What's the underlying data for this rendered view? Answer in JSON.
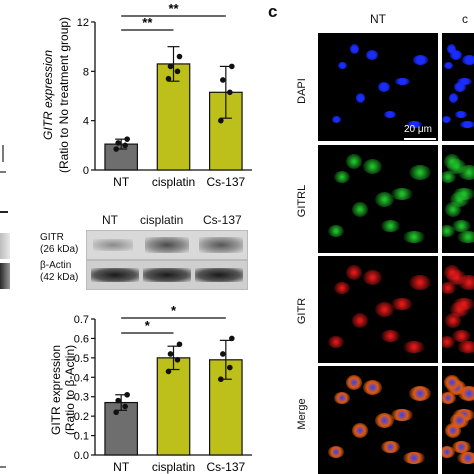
{
  "panel_c_letter": "c",
  "chart_top": {
    "type": "bar",
    "ylabel_line1": "GITR expression",
    "ylabel_line2": "(Ratio to No treatment group)",
    "categories": [
      "NT",
      "cisplatin",
      "Cs-137"
    ],
    "values": [
      2.1,
      8.6,
      6.3
    ],
    "errors": [
      0.4,
      1.4,
      2.1
    ],
    "points": [
      [
        1.7,
        2.0,
        2.2,
        2.5
      ],
      [
        7.4,
        8.0,
        8.4,
        9.2
      ],
      [
        4.0,
        6.3,
        7.3,
        8.4
      ]
    ],
    "ylim": [
      0,
      12
    ],
    "yticks": [
      "0",
      "4",
      "8",
      "12"
    ],
    "colors": [
      "#6e6e6e",
      "#bdbf1a",
      "#bdbf1a"
    ],
    "sig": [
      {
        "label": "**",
        "from": 0,
        "to": 1
      },
      {
        "label": "**",
        "from": 0,
        "to": 2
      }
    ]
  },
  "blot": {
    "lanes": [
      "NT",
      "cisplatin",
      "Cs-137"
    ],
    "rows": [
      {
        "name": "GITR",
        "size": "(26 kDa)"
      },
      {
        "name": "β-Actin",
        "size": "(42 kDa)"
      }
    ]
  },
  "chart_bottom": {
    "type": "bar",
    "ylabel_line1": "GITR expression",
    "ylabel_line2": "(Ratio to β-Actin)",
    "categories": [
      "NT",
      "cisplatin",
      "Cs-137"
    ],
    "values": [
      0.27,
      0.5,
      0.49
    ],
    "errors": [
      0.04,
      0.06,
      0.1
    ],
    "points": [
      [
        0.22,
        0.25,
        0.28,
        0.31
      ],
      [
        0.43,
        0.49,
        0.52,
        0.57
      ],
      [
        0.39,
        0.45,
        0.52,
        0.6
      ]
    ],
    "ylim": [
      0,
      0.7
    ],
    "yticks": [
      "0.0",
      "0.1",
      "0.2",
      "0.3",
      "0.4",
      "0.5",
      "0.6",
      "0.7"
    ],
    "colors": [
      "#6e6e6e",
      "#bdbf1a",
      "#bdbf1a"
    ],
    "sig": [
      {
        "label": "*",
        "from": 0,
        "to": 1
      },
      {
        "label": "*",
        "from": 0,
        "to": 2
      }
    ]
  },
  "microscopy": {
    "col_labels": [
      "NT",
      "c"
    ],
    "row_labels": [
      "DAPI",
      "GITRL",
      "GITR",
      "Merge"
    ],
    "scale_bar": "20 μm",
    "colors": {
      "DAPI": "#1a2cff",
      "GITRL": "#1fbf2a",
      "GITR": "#e01818",
      "Merge": "#c86a10"
    }
  }
}
